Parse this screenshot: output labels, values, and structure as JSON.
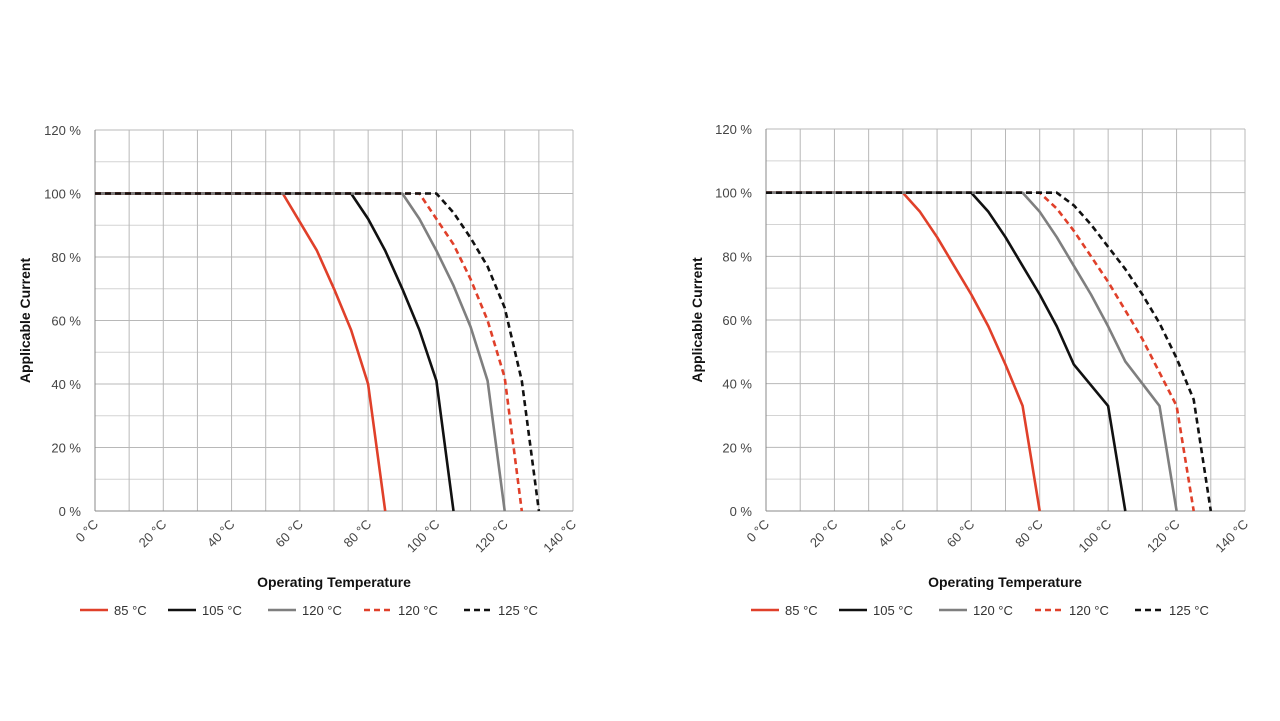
{
  "chart_data": [
    {
      "type": "line",
      "xlabel": "Operating Temperature",
      "ylabel": "Applicable Current",
      "xlim": [
        0,
        140
      ],
      "ylim": [
        0,
        120
      ],
      "x_ticks": [
        "0 °C",
        "20 °C",
        "40 °C",
        "60 °C",
        "80 °C",
        "100 °C",
        "120 °C",
        "140 °C"
      ],
      "y_ticks": [
        "0 %",
        "20 %",
        "40 %",
        "60 %",
        "80 %",
        "100 %",
        "120 %"
      ],
      "grid": true,
      "legend_position": "bottom",
      "series": [
        {
          "name": "85 °C",
          "color": "#e0402a",
          "dash": false,
          "points": [
            [
              0,
              100
            ],
            [
              55,
              100
            ],
            [
              60,
              91
            ],
            [
              65,
              82
            ],
            [
              70,
              70
            ],
            [
              75,
              57
            ],
            [
              80,
              40
            ],
            [
              85,
              0
            ]
          ]
        },
        {
          "name": "105 °C",
          "color": "#111111",
          "dash": false,
          "points": [
            [
              0,
              100
            ],
            [
              75,
              100
            ],
            [
              80,
              92
            ],
            [
              85,
              82
            ],
            [
              90,
              70
            ],
            [
              95,
              57
            ],
            [
              100,
              41
            ],
            [
              105,
              0
            ]
          ]
        },
        {
          "name": "120 °C",
          "color": "#7f7f7f",
          "dash": false,
          "points": [
            [
              0,
              100
            ],
            [
              90,
              100
            ],
            [
              95,
              92
            ],
            [
              100,
              82
            ],
            [
              105,
              71
            ],
            [
              110,
              58
            ],
            [
              115,
              41
            ],
            [
              120,
              0
            ]
          ]
        },
        {
          "name": "120 °C",
          "color": "#e0402a",
          "dash": true,
          "points": [
            [
              0,
              100
            ],
            [
              95,
              100
            ],
            [
              100,
              92
            ],
            [
              105,
              84
            ],
            [
              110,
              73
            ],
            [
              115,
              60
            ],
            [
              120,
              42
            ],
            [
              125,
              0
            ]
          ]
        },
        {
          "name": "125 °C",
          "color": "#111111",
          "dash": true,
          "points": [
            [
              0,
              100
            ],
            [
              100,
              100
            ],
            [
              105,
              94
            ],
            [
              110,
              86
            ],
            [
              115,
              77
            ],
            [
              120,
              64
            ],
            [
              125,
              41
            ],
            [
              130,
              0
            ]
          ]
        }
      ]
    },
    {
      "type": "line",
      "xlabel": "Operating Temperature",
      "ylabel": "Applicable Current",
      "xlim": [
        0,
        140
      ],
      "ylim": [
        0,
        120
      ],
      "x_ticks": [
        "0 °C",
        "20 °C",
        "40 °C",
        "60 °C",
        "80 °C",
        "100 °C",
        "120 °C",
        "140 °C"
      ],
      "y_ticks": [
        "0 %",
        "20 %",
        "40 %",
        "60 %",
        "80 %",
        "100 %",
        "120 %"
      ],
      "grid": true,
      "legend_position": "bottom",
      "series": [
        {
          "name": "85 °C",
          "color": "#e0402a",
          "dash": false,
          "points": [
            [
              0,
              100
            ],
            [
              40,
              100
            ],
            [
              45,
              94
            ],
            [
              50,
              86
            ],
            [
              55,
              77
            ],
            [
              60,
              68
            ],
            [
              65,
              58
            ],
            [
              70,
              46
            ],
            [
              75,
              33
            ],
            [
              80,
              0
            ]
          ]
        },
        {
          "name": "105 °C",
          "color": "#111111",
          "dash": false,
          "points": [
            [
              0,
              100
            ],
            [
              60,
              100
            ],
            [
              65,
              94
            ],
            [
              70,
              86
            ],
            [
              75,
              77
            ],
            [
              80,
              68
            ],
            [
              85,
              58
            ],
            [
              90,
              46
            ],
            [
              100,
              33
            ],
            [
              105,
              0
            ]
          ]
        },
        {
          "name": "120 °C",
          "color": "#7f7f7f",
          "dash": false,
          "points": [
            [
              0,
              100
            ],
            [
              75,
              100
            ],
            [
              80,
              94
            ],
            [
              85,
              86
            ],
            [
              90,
              77
            ],
            [
              95,
              68
            ],
            [
              100,
              58
            ],
            [
              105,
              47
            ],
            [
              115,
              33
            ],
            [
              120,
              0
            ]
          ]
        },
        {
          "name": "120 °C",
          "color": "#e0402a",
          "dash": true,
          "points": [
            [
              0,
              100
            ],
            [
              80,
              100
            ],
            [
              85,
              95
            ],
            [
              90,
              88
            ],
            [
              95,
              80
            ],
            [
              100,
              72
            ],
            [
              105,
              63
            ],
            [
              110,
              54
            ],
            [
              120,
              33
            ],
            [
              125,
              0
            ]
          ]
        },
        {
          "name": "125 °C",
          "color": "#111111",
          "dash": true,
          "points": [
            [
              0,
              100
            ],
            [
              85,
              100
            ],
            [
              90,
              96
            ],
            [
              95,
              90
            ],
            [
              100,
              83
            ],
            [
              105,
              76
            ],
            [
              110,
              68
            ],
            [
              115,
              59
            ],
            [
              120,
              48
            ],
            [
              125,
              35
            ],
            [
              130,
              0
            ]
          ]
        }
      ]
    }
  ]
}
